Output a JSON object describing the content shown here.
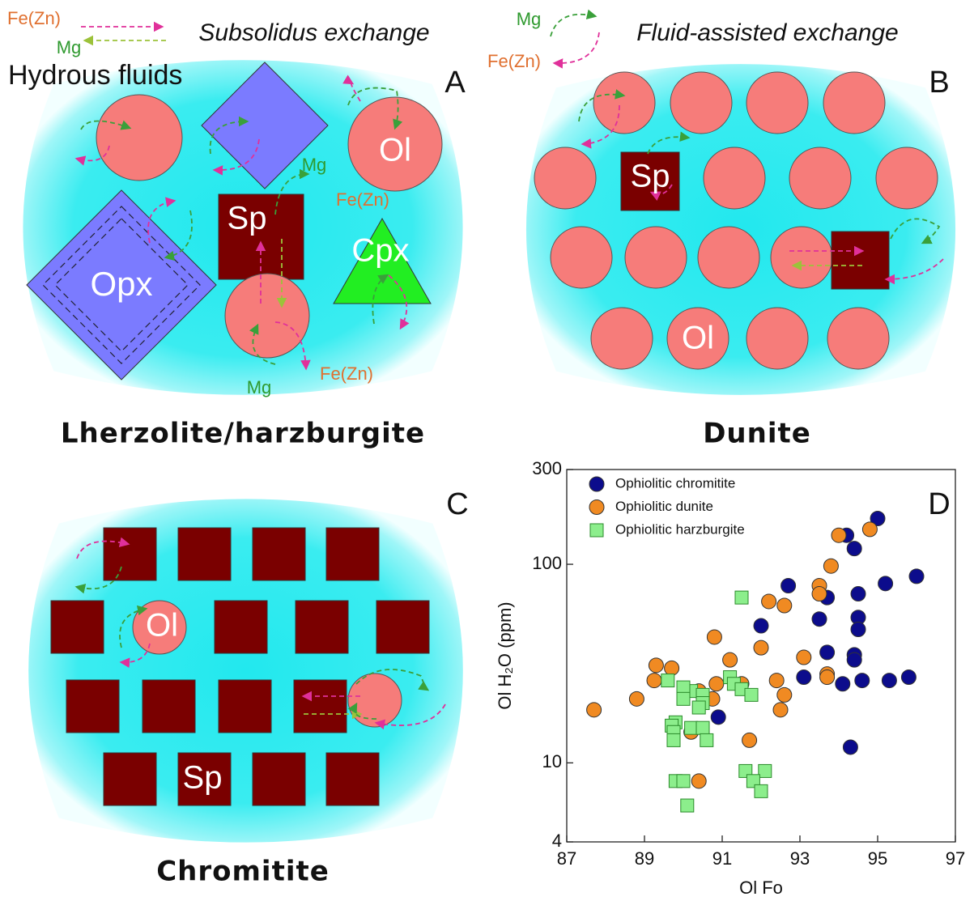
{
  "panel_a": {
    "legend": [
      "Fe(Zn)",
      "Mg"
    ],
    "title": "Subsolidus exchange",
    "fluid_label": "Hydrous fluids",
    "letter": "A",
    "labels": [
      "Ol",
      "Sp",
      "Cpx",
      "Opx",
      "Mg",
      "Fe(Zn)",
      "Mg",
      "Fe(Zn)"
    ],
    "caption": "Lherzolite/harzburgite"
  },
  "panel_b": {
    "legend": [
      "Mg",
      "Fe(Zn)"
    ],
    "title": "Fluid-assisted exchange",
    "letter": "B",
    "labels": [
      "Sp",
      "Ol"
    ],
    "caption": "Dunite"
  },
  "panel_c": {
    "letter": "C",
    "labels": [
      "Ol",
      "Sp"
    ],
    "caption": "Chromitite"
  },
  "chart_data": {
    "type": "scatter",
    "letter": "D",
    "xlabel": "Ol Fo",
    "ylabel": "Ol H₂O (ppm)",
    "xlim": [
      87,
      97
    ],
    "xticks": [
      87,
      89,
      91,
      93,
      95,
      97
    ],
    "ylim": [
      4,
      300
    ],
    "yticks": [
      4,
      10,
      100,
      300
    ],
    "log_y": true,
    "legend": "upper left",
    "series": [
      {
        "name": "Ophiolitic chromitite",
        "color": "#0c0c8c",
        "marker": "circle",
        "x": [
          95.0,
          94.2,
          94.4,
          96.0,
          95.2,
          92.7,
          94.5,
          93.7,
          93.5,
          94.5,
          94.5,
          92.0,
          93.7,
          94.4,
          94.4,
          93.1,
          94.1,
          94.6,
          95.3,
          95.8,
          90.9,
          94.3
        ],
        "y": [
          170,
          140,
          120,
          87,
          80,
          78,
          71,
          68,
          53,
          54,
          47,
          49,
          36,
          35,
          33,
          27,
          25,
          26,
          26,
          27,
          17,
          12
        ]
      },
      {
        "name": "Ophiolitic dunite",
        "color": "#f08a22",
        "marker": "circle",
        "x": [
          94.8,
          94.0,
          93.8,
          93.5,
          93.5,
          92.2,
          92.6,
          90.8,
          92.0,
          93.1,
          91.2,
          93.7,
          93.7,
          92.4,
          89.3,
          89.7,
          89.25,
          91.5,
          90.85,
          90.4,
          92.6,
          90.75,
          88.8,
          92.5,
          87.7,
          90.2,
          91.7,
          90.4
        ],
        "y": [
          150,
          140,
          98,
          78,
          71,
          65,
          62,
          43,
          38,
          34,
          33,
          28,
          27,
          26,
          31,
          30,
          26,
          25,
          25,
          23,
          22,
          21,
          21,
          18.5,
          18.5,
          14.3,
          13,
          8.1
        ]
      },
      {
        "name": "Ophiolitic harzburgite",
        "color": "#8cee8c",
        "marker": "square",
        "x": [
          91.5,
          89.6,
          90.2,
          90.0,
          91.2,
          91.3,
          91.5,
          91.75,
          90.5,
          90.0,
          90.5,
          90.4,
          89.8,
          89.7,
          89.75,
          89.75,
          90.2,
          90.5,
          90.6,
          91.6,
          92.1,
          91.8,
          92.0,
          89.8,
          90.0,
          90.1
        ],
        "y": [
          68,
          26,
          23,
          24,
          27,
          25,
          23.5,
          22,
          22,
          21,
          20,
          19,
          16,
          15.4,
          14.3,
          13,
          15,
          15,
          13,
          9.1,
          9.1,
          8.1,
          7.2,
          8.1,
          8.1,
          6.1
        ]
      }
    ]
  }
}
